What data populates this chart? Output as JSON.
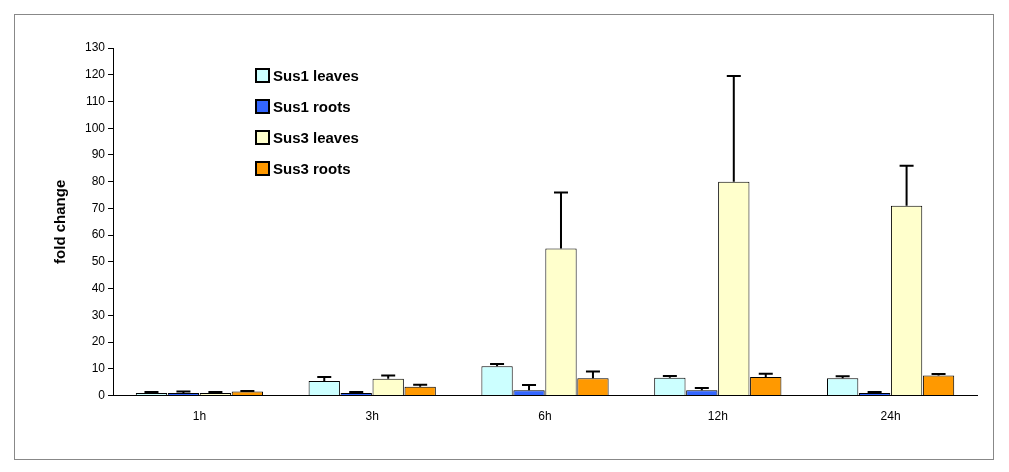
{
  "chart_data": {
    "type": "bar",
    "ylabel": "fold change",
    "categories": [
      "1h",
      "3h",
      "6h",
      "12h",
      "24h"
    ],
    "series": [
      {
        "name": "Sus1 leaves",
        "color": "#ccffff",
        "values": [
          1,
          5.5,
          11,
          6.7,
          6.5
        ],
        "errors": [
          [
            1,
            1.3
          ],
          [
            5.5,
            7
          ],
          [
            11,
            11.8
          ],
          [
            6.7,
            7.3
          ],
          [
            6.5,
            7.2
          ]
        ]
      },
      {
        "name": "Sus1 roots",
        "color": "#3366ff",
        "values": [
          1,
          1,
          2,
          2,
          1
        ],
        "errors": [
          [
            1,
            1.5
          ],
          [
            1,
            1.3
          ],
          [
            2,
            4
          ],
          [
            2,
            2.8
          ],
          [
            1,
            1.3
          ]
        ]
      },
      {
        "name": "Sus3 leaves",
        "color": "#ffffcc",
        "values": [
          1,
          6.3,
          55,
          80,
          71
        ],
        "errors": [
          [
            1,
            1.3
          ],
          [
            6.3,
            7.5
          ],
          [
            55,
            76
          ],
          [
            80,
            119.5
          ],
          [
            71,
            86
          ]
        ]
      },
      {
        "name": "Sus3 roots",
        "color": "#ff9900",
        "values": [
          1.5,
          3.3,
          6.5,
          7,
          7.5
        ],
        "errors": [
          [
            1.5,
            1.7
          ],
          [
            3.3,
            4.1
          ],
          [
            6.5,
            9
          ],
          [
            7,
            8.2
          ],
          [
            7.5,
            8.1
          ]
        ]
      }
    ],
    "ylim": [
      0,
      130
    ],
    "yticks": [
      0,
      10,
      20,
      30,
      40,
      50,
      60,
      70,
      80,
      90,
      100,
      110,
      120,
      130
    ],
    "grid": false,
    "legend": "top left"
  }
}
